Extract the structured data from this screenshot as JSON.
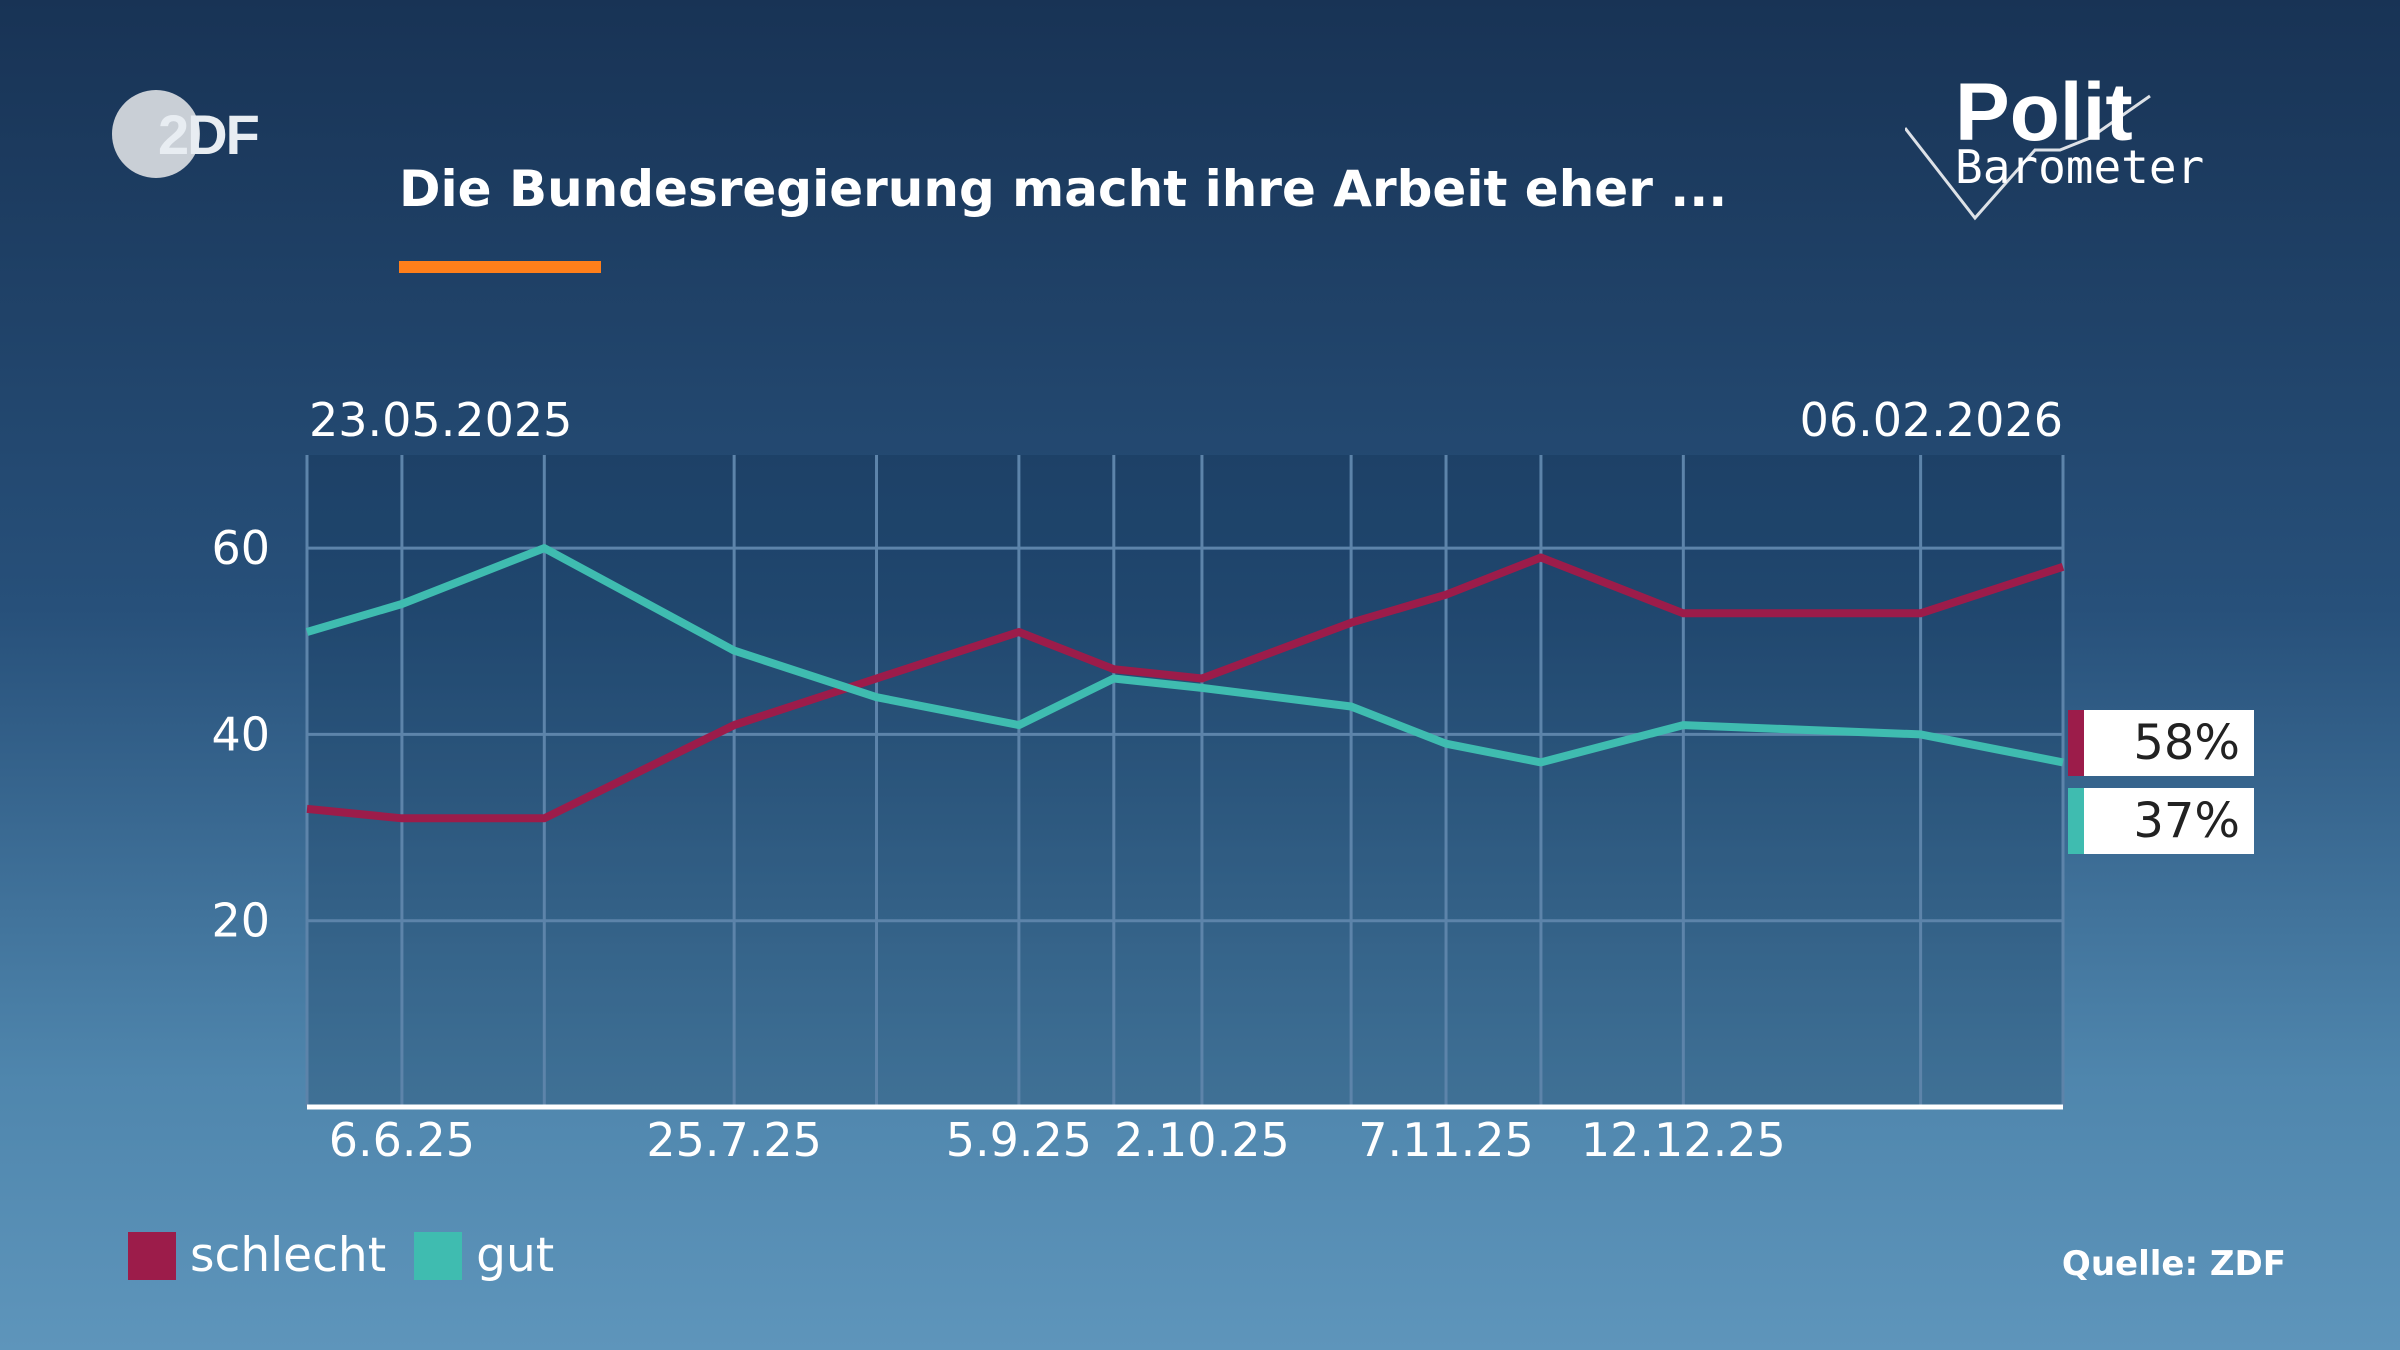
{
  "brand": {
    "logo_text": "2DF",
    "program_line1": "Polit",
    "program_line2": "Barometer"
  },
  "title": "Die Bundesregierung macht ihre Arbeit eher ...",
  "source": "Quelle: ZDF",
  "colors": {
    "schlecht": "#9c1c4a",
    "gut": "#3fbcb0",
    "accent": "#ff7f1a"
  },
  "chart_data": {
    "type": "line",
    "date_start_label": "23.05.2025",
    "date_end_label": "06.02.2026",
    "x": [
      "2025-05-23",
      "2025-06-06",
      "2025-06-27",
      "2025-07-25",
      "2025-08-15",
      "2025-09-05",
      "2025-09-19",
      "2025-10-02",
      "2025-10-24",
      "2025-11-07",
      "2025-11-21",
      "2025-12-12",
      "2026-01-16",
      "2026-02-06"
    ],
    "x_tick_labels": [
      {
        "x": "2025-06-06",
        "label": "6.6.25"
      },
      {
        "x": "2025-07-25",
        "label": "25.7.25"
      },
      {
        "x": "2025-09-05",
        "label": "5.9.25"
      },
      {
        "x": "2025-10-02",
        "label": "2.10.25"
      },
      {
        "x": "2025-11-07",
        "label": "7.11.25"
      },
      {
        "x": "2025-12-12",
        "label": "12.12.25"
      }
    ],
    "y_ticks": [
      20,
      40,
      60
    ],
    "ylim": [
      0,
      70
    ],
    "series": [
      {
        "name": "schlecht",
        "values": [
          32,
          31,
          31,
          41,
          46,
          51,
          47,
          46,
          52,
          55,
          59,
          53,
          53,
          58
        ],
        "end_label": "58%"
      },
      {
        "name": "gut",
        "values": [
          51,
          54,
          60,
          49,
          44,
          41,
          46,
          45,
          43,
          39,
          37,
          41,
          40,
          37
        ],
        "end_label": "37%"
      }
    ],
    "grid": true,
    "legend": "bottom-left"
  }
}
